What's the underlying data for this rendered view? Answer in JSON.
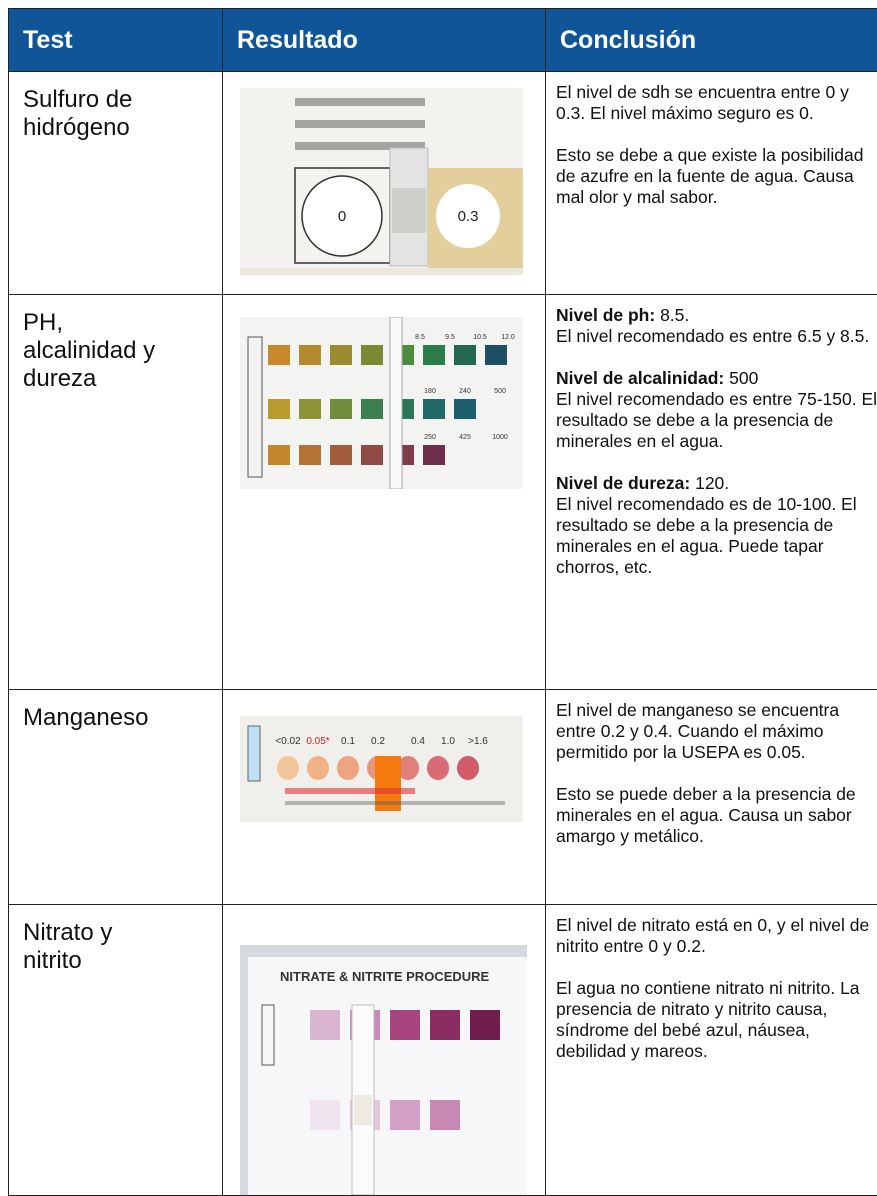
{
  "table": {
    "header": [
      "Test",
      "Resultado",
      "Conclusión"
    ],
    "rows": [
      {
        "test": [
          "Sulfuro de",
          "hidrógeno"
        ],
        "photo_text": [
          "0",
          "0.3"
        ],
        "conclusion": [
          "El nivel de sdh se encuentra entre 0 y 0.3. El nivel máximo seguro es 0.",
          "Esto se debe a que existe la posibilidad de azufre en la fuente de agua. Causa mal olor y mal sabor."
        ]
      },
      {
        "test": [
          "PH,",
          "alcalinidad y",
          "dureza"
        ],
        "photo_text": [
          "8.5",
          "9.5",
          "10.5",
          "12.0",
          "180",
          "240",
          "500",
          "250",
          "425",
          "1000"
        ],
        "conclusion": [
          {
            "label": "Nivel de ph:",
            "value": "8.5.",
            "text": "El nivel recomendado es entre 6.5 y 8.5."
          },
          {
            "label": "Nivel de alcalinidad:",
            "value": "500",
            "text": "El nivel recomendado es entre 75-150. El resultado se debe a la presencia de minerales en el agua."
          },
          {
            "label": "Nivel de dureza:",
            "value": "120.",
            "text": "El nivel recomendado es de 10-100. El resultado se debe a la presencia de minerales en el agua. Puede tapar chorros, etc."
          }
        ]
      },
      {
        "test": [
          "Manganeso"
        ],
        "photo_text": [
          "<0.02",
          "0.05*",
          "0.1",
          "0.2",
          "0.4",
          "1.0",
          ">1.6"
        ],
        "conclusion": [
          "El nivel de manganeso se encuentra entre 0.2 y 0.4. Cuando el máximo permitido por la USEPA es 0.05.",
          "Esto se puede deber a la presencia de minerales en el agua. Causa un sabor amargo y metálico."
        ]
      },
      {
        "test": [
          "Nitrato y",
          "nitrito"
        ],
        "photo_text": [
          "NITRATE & NITRITE PROCEDURE"
        ],
        "conclusion": [
          "El nivel de nitrato está en 0, y el nivel de nitrito entre 0 y 0.2.",
          "El agua no contiene nitrato ni nitrito. La presencia de nitrato y nitrito causa, síndrome del bebé azul, náusea, debilidad y mareos."
        ]
      }
    ]
  }
}
